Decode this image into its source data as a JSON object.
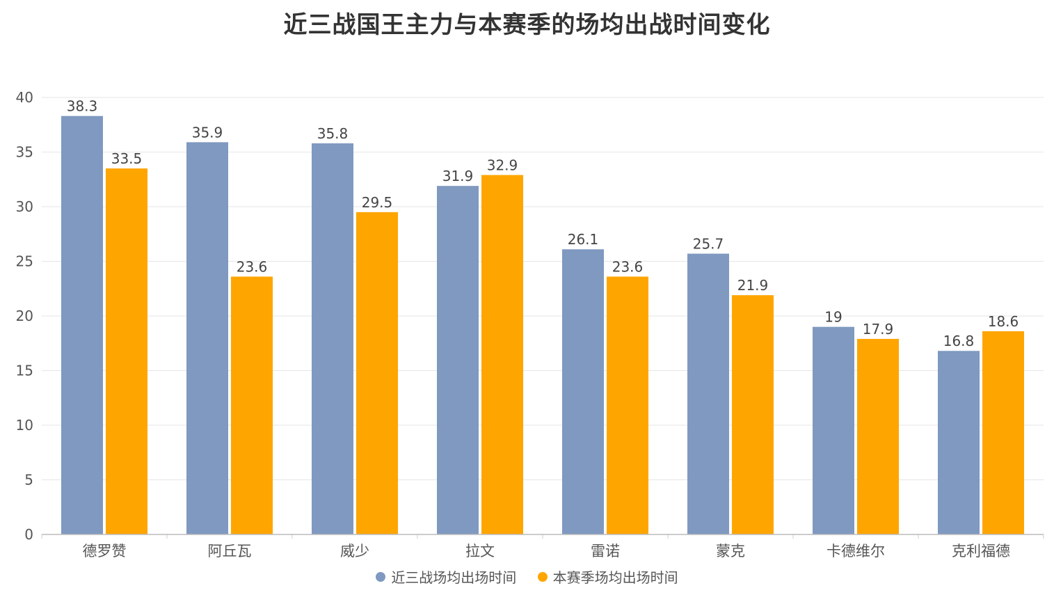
{
  "chart_data": {
    "type": "bar",
    "title": "近三战国王主力与本赛季的场均出战时间变化",
    "xlabel": "",
    "ylabel": "",
    "ylim": [
      0,
      40
    ],
    "yticks": [
      0,
      5,
      10,
      15,
      20,
      25,
      30,
      35,
      40
    ],
    "grid": true,
    "legend_position": "bottom",
    "categories": [
      "德罗赞",
      "阿丘瓦",
      "威少",
      "拉文",
      "雷诺",
      "蒙克",
      "卡德维尔",
      "克利福德"
    ],
    "series": [
      {
        "name": "近三战场均出场时间",
        "color": "#7f99c0",
        "values": [
          38.3,
          35.9,
          35.8,
          31.9,
          26.1,
          25.7,
          19,
          16.8
        ]
      },
      {
        "name": "本赛季场均出场时间",
        "color": "#ffa500",
        "values": [
          33.5,
          23.6,
          29.5,
          32.9,
          23.6,
          21.9,
          17.9,
          18.6
        ]
      }
    ]
  }
}
